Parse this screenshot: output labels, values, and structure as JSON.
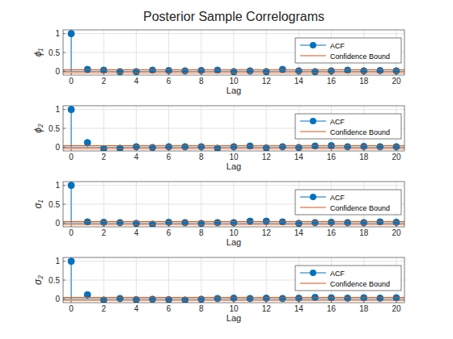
{
  "title": "Posterior Sample Correlograms",
  "chart_data": [
    {
      "type": "stem",
      "y_label": "ϕ₁",
      "x_label": "Lag",
      "x": [
        0,
        1,
        2,
        3,
        4,
        5,
        6,
        7,
        8,
        9,
        10,
        11,
        12,
        13,
        14,
        15,
        16,
        17,
        18,
        19,
        20
      ],
      "xlim": [
        -0.5,
        20.5
      ],
      "xticks": [
        0,
        2,
        4,
        6,
        8,
        10,
        12,
        14,
        16,
        18,
        20
      ],
      "ylim": [
        -0.1,
        1.1
      ],
      "yticks": [
        0,
        0.5,
        1
      ],
      "grid": true,
      "legend": "northeast",
      "series": [
        {
          "name": "ACF",
          "type": "stem",
          "color": "#0072bd",
          "marker": "o",
          "values": [
            1,
            0.05,
            0.03,
            -0.01,
            -0.01,
            0.03,
            0.02,
            0.01,
            0.02,
            0.03,
            -0.01,
            0.01,
            -0.01,
            0.05,
            0.01,
            -0.01,
            0.01,
            0.03,
            0.01,
            0.02,
            0.01
          ]
        },
        {
          "name": "Confidence Bound",
          "type": "line",
          "color": "#d95319",
          "line_style": "solid",
          "bounds": [
            0.04,
            -0.04
          ]
        }
      ]
    },
    {
      "type": "stem",
      "y_label": "ϕ₂",
      "x_label": "Lag",
      "x": [
        0,
        1,
        2,
        3,
        4,
        5,
        6,
        7,
        8,
        9,
        10,
        11,
        12,
        13,
        14,
        15,
        16,
        17,
        18,
        19,
        20
      ],
      "xlim": [
        -0.5,
        20.5
      ],
      "xticks": [
        0,
        2,
        4,
        6,
        8,
        10,
        12,
        14,
        16,
        18,
        20
      ],
      "ylim": [
        -0.1,
        1.1
      ],
      "yticks": [
        0,
        0.5,
        1
      ],
      "grid": true,
      "legend": "northeast",
      "series": [
        {
          "name": "ACF",
          "type": "stem",
          "color": "#0072bd",
          "marker": "o",
          "values": [
            1,
            0.12,
            -0.04,
            -0.03,
            0.01,
            -0.01,
            0.01,
            0.01,
            0.01,
            -0.03,
            0.01,
            0.03,
            -0.02,
            0.01,
            -0.01,
            0.03,
            0.04,
            0.01,
            0.02,
            0.01,
            0.01
          ]
        },
        {
          "name": "Confidence Bound",
          "type": "line",
          "color": "#d95319",
          "line_style": "solid",
          "bounds": [
            0.04,
            -0.04
          ]
        }
      ]
    },
    {
      "type": "stem",
      "y_label": "σ₁",
      "x_label": "Lag",
      "x": [
        0,
        1,
        2,
        3,
        4,
        5,
        6,
        7,
        8,
        9,
        10,
        11,
        12,
        13,
        14,
        15,
        16,
        17,
        18,
        19,
        20
      ],
      "xlim": [
        -0.5,
        20.5
      ],
      "xticks": [
        0,
        2,
        4,
        6,
        8,
        10,
        12,
        14,
        16,
        18,
        20
      ],
      "ylim": [
        -0.1,
        1.1
      ],
      "yticks": [
        0,
        0.5,
        1
      ],
      "grid": true,
      "legend": "northeast",
      "series": [
        {
          "name": "ACF",
          "type": "stem",
          "color": "#0072bd",
          "marker": "o",
          "values": [
            1,
            0.03,
            0.02,
            0.01,
            -0.01,
            -0.03,
            0.02,
            0.01,
            -0.01,
            0.01,
            0.01,
            0.05,
            0.05,
            0.03,
            -0.01,
            0.01,
            0.02,
            0.01,
            0.01,
            0.03,
            0.02
          ]
        },
        {
          "name": "Confidence Bound",
          "type": "line",
          "color": "#d95319",
          "line_style": "solid",
          "bounds": [
            0.04,
            -0.04
          ]
        }
      ]
    },
    {
      "type": "stem",
      "y_label": "σ₂",
      "x_label": "Lag",
      "x": [
        0,
        1,
        2,
        3,
        4,
        5,
        6,
        7,
        8,
        9,
        10,
        11,
        12,
        13,
        14,
        15,
        16,
        17,
        18,
        19,
        20
      ],
      "xlim": [
        -0.5,
        20.5
      ],
      "xticks": [
        0,
        2,
        4,
        6,
        8,
        10,
        12,
        14,
        16,
        18,
        20
      ],
      "ylim": [
        -0.1,
        1.1
      ],
      "yticks": [
        0,
        0.5,
        1
      ],
      "grid": true,
      "legend": "northeast",
      "series": [
        {
          "name": "ACF",
          "type": "stem",
          "color": "#0072bd",
          "marker": "o",
          "values": [
            1,
            0.11,
            -0.03,
            0.01,
            -0.02,
            -0.01,
            -0.02,
            -0.03,
            -0.01,
            0.01,
            0.02,
            0.01,
            0.02,
            0.01,
            0.02,
            0.04,
            0.03,
            0.02,
            0.03,
            0.02,
            0.03
          ]
        },
        {
          "name": "Confidence Bound",
          "type": "line",
          "color": "#d95319",
          "line_style": "solid",
          "bounds": [
            0.04,
            -0.04
          ]
        }
      ]
    }
  ]
}
